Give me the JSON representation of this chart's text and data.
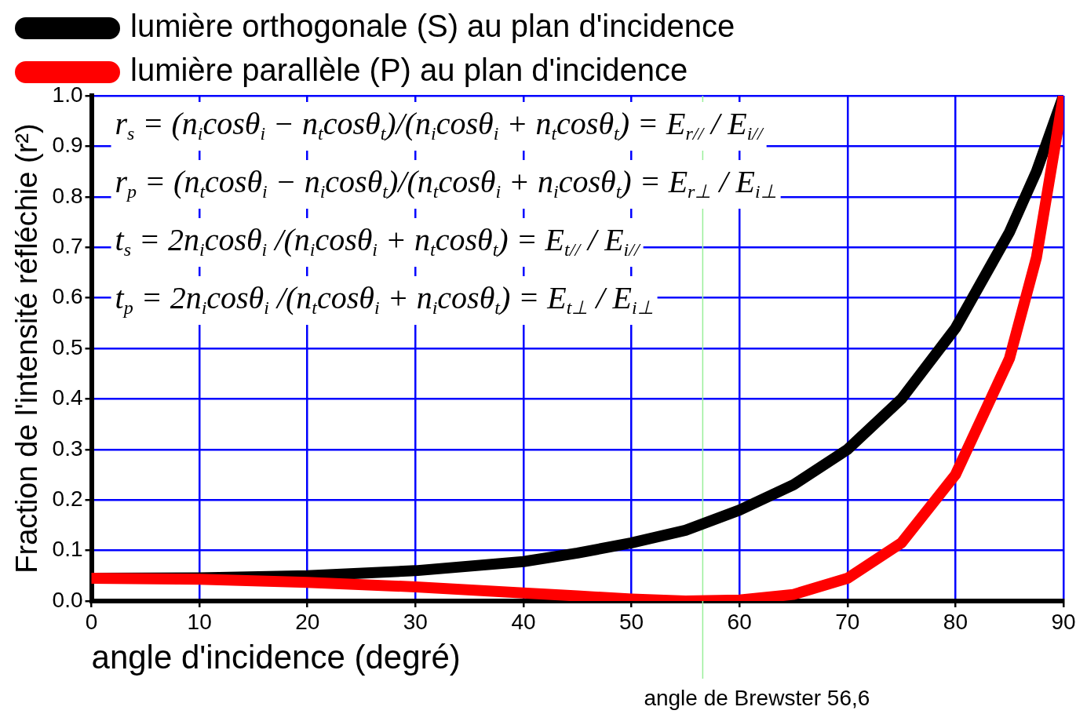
{
  "chart_data": {
    "type": "line",
    "xlabel": "angle d'incidence (degré)",
    "ylabel": "Fraction de l'intensité réfléchie (r²)",
    "xlim": [
      0,
      90
    ],
    "xticks": [
      0,
      10,
      20,
      30,
      40,
      50,
      60,
      70,
      80,
      90
    ],
    "ylim": [
      0,
      1
    ],
    "yticks": [
      {
        "value": 0,
        "label": "0.0"
      },
      {
        "value": 0.1,
        "label": "0.1"
      },
      {
        "value": 0.2,
        "label": "0.2"
      },
      {
        "value": 0.3,
        "label": "0.3"
      },
      {
        "value": 0.4,
        "label": "0.4"
      },
      {
        "value": 0.5,
        "label": "0.5"
      },
      {
        "value": 0.6,
        "label": "0.6"
      },
      {
        "value": 0.7,
        "label": "0.7"
      },
      {
        "value": 0.8,
        "label": "0.8"
      },
      {
        "value": 0.9,
        "label": "0.9"
      },
      {
        "value": 1,
        "label": "1.0"
      }
    ],
    "x": [
      0,
      10,
      20,
      30,
      40,
      45,
      50,
      55,
      60,
      65,
      70,
      75,
      80,
      85,
      87.5,
      90
    ],
    "series": [
      {
        "name": "lumière orthogonale (S) au plan d'incidence",
        "color": "#000000",
        "values": [
          0.045,
          0.046,
          0.05,
          0.06,
          0.078,
          0.095,
          0.115,
          0.14,
          0.18,
          0.23,
          0.3,
          0.4,
          0.54,
          0.73,
          0.85,
          1.0
        ]
      },
      {
        "name": "lumière parallèle (P) au plan d'incidence",
        "color": "#ff0000",
        "values": [
          0.045,
          0.043,
          0.037,
          0.028,
          0.016,
          0.01,
          0.004,
          0,
          0.002,
          0.013,
          0.045,
          0.115,
          0.25,
          0.48,
          0.68,
          1.0
        ]
      }
    ],
    "grid": true,
    "legend": "top",
    "marker": "none",
    "line_style": "solid",
    "ref_lines": [
      {
        "axis": "x",
        "value": 56.6,
        "label": "angle de Brewster 56,6",
        "color": "#99ee99"
      }
    ],
    "annotations": [
      "r$_{s}$ = (n$_{i}$cosθ$_{i}$ − n$_{t}$cosθ$_{t}$)/(n$_{i}$cosθ$_{i}$ + n$_{t}$cosθ$_{t}$) = E$_{r//}$ / E$_{i//}$",
      "r$_{p}$ = (n$_{t}$cosθ$_{i}$ − n$_{i}$cosθ$_{t}$)/(n$_{t}$cosθ$_{i}$ + n$_{i}$cosθ$_{t}$) = E$_{r⊥}$ / E$_{i⊥}$",
      "t$_{s}$ = 2n$_{i}$cosθ$_{i}$ /(n$_{i}$cosθ$_{i}$ + n$_{t}$cosθ$_{t}$) = E$_{t//}$ / E$_{i//}$",
      "t$_{p}$ = 2n$_{i}$cosθ$_{i}$ /(n$_{t}$cosθ$_{i}$ + n$_{i}$cosθ$_{t}$) = E$_{t⊥}$ / E$_{i⊥}$"
    ]
  }
}
